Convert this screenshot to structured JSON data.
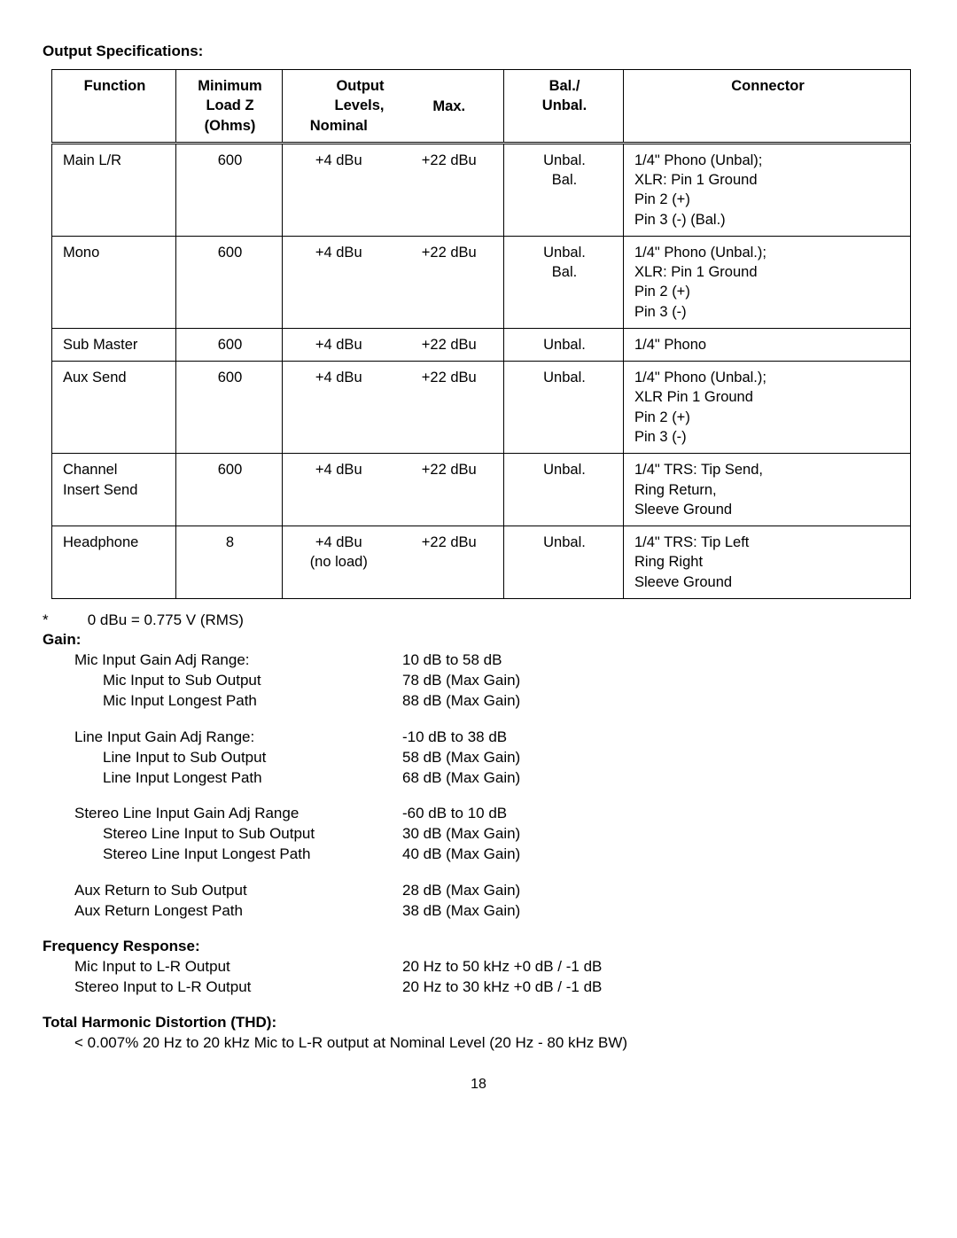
{
  "title_output_spec": "Output Specifications:",
  "table": {
    "headers": {
      "function": "Function",
      "min_load_l1": "Minimum",
      "min_load_l2": "Load Z",
      "min_load_l3": "(Ohms)",
      "output_levels": "Output Levels,",
      "nominal": "Nominal",
      "max": "Max.",
      "bal_l1": "Bal./",
      "bal_l2": "Unbal.",
      "connector": "Connector"
    },
    "rows": [
      {
        "function": "Main L/R",
        "load": "600",
        "nominal": "+4 dBu",
        "max": "+22 dBu",
        "bal": "Unbal.\nBal.",
        "connector": "1/4\" Phono (Unbal);\nXLR: Pin 1 Ground\nPin 2 (+)\nPin 3 (-) (Bal.)"
      },
      {
        "function": "Mono",
        "load": "600",
        "nominal": "+4 dBu",
        "max": "+22 dBu",
        "bal": "Unbal.\nBal.",
        "connector": "1/4\" Phono (Unbal.);\nXLR: Pin 1 Ground\nPin 2 (+)\nPin 3 (-)"
      },
      {
        "function": "Sub Master",
        "load": "600",
        "nominal": "+4 dBu",
        "max": "+22 dBu",
        "bal": "Unbal.",
        "connector": "1/4\" Phono"
      },
      {
        "function": "Aux Send",
        "load": "600",
        "nominal": "+4 dBu",
        "max": "+22 dBu",
        "bal": "Unbal.",
        "connector": "1/4\" Phono (Unbal.);\nXLR Pin 1 Ground\nPin 2 (+)\nPin 3 (-)"
      },
      {
        "function": "Channel\nInsert Send",
        "load": "600",
        "nominal": "+4 dBu",
        "max": "+22 dBu",
        "bal": "Unbal.",
        "connector": "1/4\" TRS: Tip Send,\nRing Return,\nSleeve Ground"
      },
      {
        "function": "Headphone",
        "load": "8",
        "nominal": "+4 dBu\n(no load)",
        "max": "+22 dBu",
        "bal": "Unbal.",
        "connector": "1/4\" TRS: Tip Left\nRing Right\nSleeve Ground"
      }
    ]
  },
  "footnote_star": "*",
  "footnote_text": "0 dBu = 0.775 V (RMS)",
  "title_gain": "Gain:",
  "gain_groups": [
    {
      "main": {
        "label": "Mic Input Gain Adj Range:",
        "value": "10 dB to 58 dB"
      },
      "subs": [
        {
          "label": "Mic Input to Sub Output",
          "value": "78 dB (Max Gain)"
        },
        {
          "label": "Mic Input Longest Path",
          "value": "88 dB (Max Gain)"
        }
      ]
    },
    {
      "main": {
        "label": "Line Input Gain Adj Range:",
        "value": "-10 dB to 38 dB"
      },
      "subs": [
        {
          "label": "Line Input to Sub Output",
          "value": "58 dB (Max Gain)"
        },
        {
          "label": "Line Input Longest Path",
          "value": "68 dB (Max Gain)"
        }
      ]
    },
    {
      "main": {
        "label": "Stereo Line Input Gain Adj Range",
        "value": "-60 dB to 10 dB"
      },
      "subs": [
        {
          "label": "Stereo Line Input to Sub Output",
          "value": "30 dB (Max Gain)"
        },
        {
          "label": "Stereo Line Input Longest Path",
          "value": "40 dB (Max Gain)"
        }
      ]
    },
    {
      "main": {
        "label": "Aux Return to Sub Output",
        "value": "28 dB (Max Gain)"
      },
      "subs": [
        {
          "label": "Aux Return Longest Path",
          "value": "38 dB (Max Gain)"
        }
      ],
      "no_indent": true
    }
  ],
  "title_freq": "Frequency Response:",
  "freq_rows": [
    {
      "label": "Mic Input to L-R Output",
      "value": "20 Hz to 50 kHz +0 dB / -1 dB"
    },
    {
      "label": "Stereo Input to L-R Output",
      "value": "20 Hz to 30 kHz +0 dB / -1 dB"
    }
  ],
  "title_thd": "Total Harmonic Distortion (THD):",
  "thd_text": "< 0.007% 20 Hz to 20 kHz  Mic to L-R output at Nominal Level (20 Hz - 80 kHz BW)",
  "page_number": "18"
}
